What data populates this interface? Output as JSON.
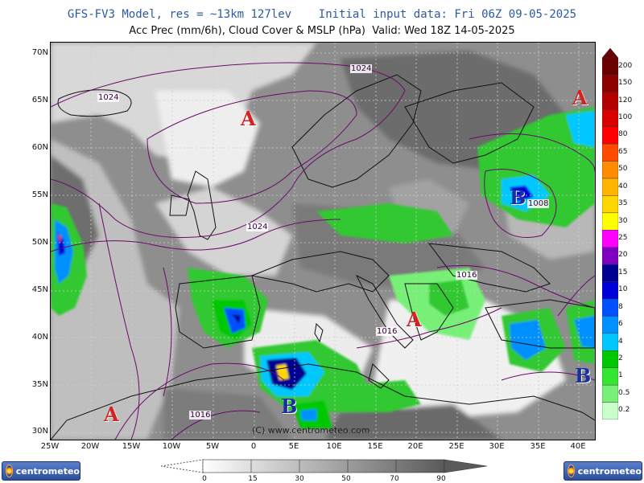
{
  "header": {
    "line1": "GFS-FV3 Model, res = ~13km 127lev    Initial input data: Fri 06Z 09-05-2025",
    "line2": "Acc Prec (mm/6h), Cloud Cover & MSLP (hPa)  Valid: Wed 18Z 14-05-2025"
  },
  "axes": {
    "lat_labels": [
      "70N",
      "65N",
      "60N",
      "55N",
      "50N",
      "45N",
      "40N",
      "35N",
      "30N"
    ],
    "lon_labels": [
      "25W",
      "20W",
      "15W",
      "10W",
      "5W",
      "0",
      "5E",
      "10E",
      "15E",
      "20E",
      "25E",
      "30E",
      "35E",
      "40E"
    ]
  },
  "precip_legend": {
    "levels": [
      "200",
      "150",
      "120",
      "100",
      "80",
      "65",
      "50",
      "40",
      "35",
      "30",
      "25",
      "20",
      "15",
      "10",
      "8",
      "6",
      "4",
      "2",
      "1",
      "0.5",
      "0.2"
    ],
    "colors": [
      "#6b0000",
      "#8c0000",
      "#b40000",
      "#d80000",
      "#ff0000",
      "#ff4a00",
      "#ff8c00",
      "#ffb400",
      "#ffd700",
      "#ffff00",
      "#ff00ff",
      "#8000c0",
      "#000090",
      "#0000d8",
      "#0050ff",
      "#0090ff",
      "#00c8ff",
      "#00c800",
      "#32e632",
      "#78f078",
      "#c8ffc8"
    ]
  },
  "cloud_cover": {
    "labels": [
      "0",
      "15",
      "30",
      "50",
      "70",
      "90"
    ]
  },
  "pressure_centers": [
    {
      "type": "high",
      "text": "A"
    },
    {
      "type": "high",
      "text": "A"
    },
    {
      "type": "high",
      "text": "A"
    },
    {
      "type": "high",
      "text": "A"
    },
    {
      "type": "low",
      "text": "B"
    },
    {
      "type": "low",
      "text": "B"
    },
    {
      "type": "low",
      "text": "B"
    }
  ],
  "isobar_labels": [
    "1024",
    "1024",
    "1024",
    "1008",
    "1016",
    "1016",
    "1016"
  ],
  "copyright": "(C) www.centrometeo.com",
  "logos": {
    "left": "centrometeo",
    "right": "centrometeo"
  }
}
